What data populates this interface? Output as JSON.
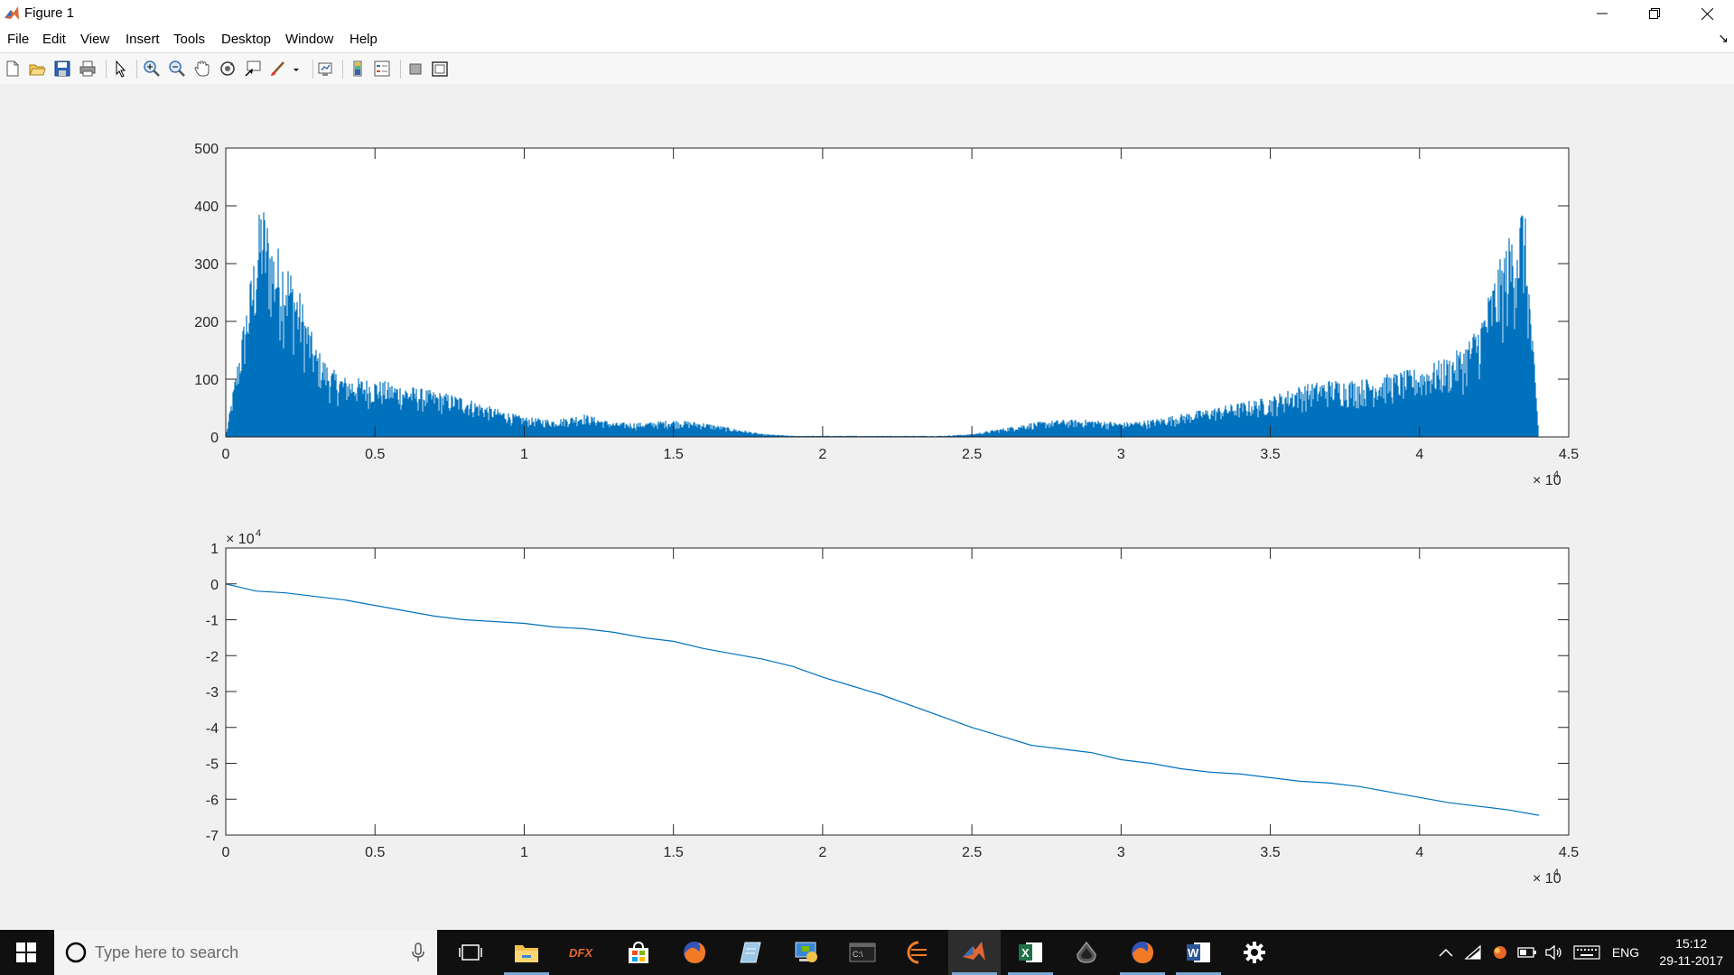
{
  "window": {
    "title": "Figure 1",
    "menu": [
      "File",
      "Edit",
      "View",
      "Insert",
      "Tools",
      "Desktop",
      "Window",
      "Help"
    ]
  },
  "toolbar": {
    "icons": [
      "new-figure-icon",
      "open-file-icon",
      "save-icon",
      "print-icon",
      "edit-plot-arrow-icon",
      "zoom-in-icon",
      "zoom-out-icon",
      "pan-hand-icon",
      "rotate-3d-icon",
      "data-cursor-icon",
      "brush-icon",
      "brush-dropdown-icon",
      "link-plot-icon",
      "insert-colorbar-icon",
      "insert-legend-icon",
      "hide-plot-tools-icon",
      "show-plot-tools-icon"
    ]
  },
  "chart_data": [
    {
      "type": "bar",
      "title": "",
      "xlabel": "",
      "ylabel": "",
      "xlim": [
        0,
        45000
      ],
      "ylim": [
        0,
        500
      ],
      "x_ticks": [
        "0",
        "0.5",
        "1",
        "1.5",
        "2",
        "2.5",
        "3",
        "3.5",
        "4",
        "4.5"
      ],
      "x_exponent": "× 10",
      "x_exponent_power": "4",
      "y_ticks": [
        "0",
        "100",
        "200",
        "300",
        "400",
        "500"
      ],
      "color": "#0072bd",
      "grid": false,
      "envelope": {
        "x": [
          0,
          300,
          600,
          900,
          1200,
          1600,
          2000,
          2500,
          3000,
          3500,
          4000,
          5000,
          6000,
          7000,
          8000,
          9000,
          10000,
          11000,
          12000,
          13000,
          14000,
          15000,
          16000,
          17000,
          18000,
          19000,
          20000,
          22000,
          24000,
          25000,
          26000,
          27000,
          28000,
          29000,
          30000,
          31000,
          32000,
          33000,
          34000,
          35000,
          36000,
          37000,
          38000,
          39000,
          40000,
          41000,
          41500,
          42000,
          42500,
          43000,
          43500,
          44000
        ],
        "y": [
          0,
          100,
          200,
          300,
          420,
          340,
          320,
          250,
          160,
          120,
          105,
          100,
          90,
          80,
          70,
          50,
          35,
          30,
          40,
          25,
          25,
          30,
          25,
          15,
          5,
          2,
          2,
          2,
          2,
          5,
          15,
          25,
          30,
          30,
          25,
          30,
          40,
          50,
          60,
          70,
          90,
          100,
          100,
          110,
          120,
          140,
          160,
          200,
          280,
          350,
          420,
          0
        ]
      }
    },
    {
      "type": "line",
      "title": "",
      "xlabel": "",
      "ylabel": "",
      "xlim": [
        0,
        45000
      ],
      "ylim": [
        -70000,
        10000
      ],
      "x_ticks": [
        "0",
        "0.5",
        "1",
        "1.5",
        "2",
        "2.5",
        "3",
        "3.5",
        "4",
        "4.5"
      ],
      "x_exponent": "× 10",
      "x_exponent_power": "4",
      "y_ticks": [
        "1",
        "0",
        "-1",
        "-2",
        "-3",
        "-4",
        "-5",
        "-6",
        "-7"
      ],
      "y_exponent": "× 10",
      "y_exponent_power": "4",
      "color": "#0072bd",
      "grid": false,
      "x": [
        0,
        500,
        1000,
        2000,
        3000,
        4000,
        5000,
        6000,
        7000,
        8000,
        9000,
        10000,
        11000,
        12000,
        13000,
        14000,
        15000,
        16000,
        17000,
        18000,
        19000,
        20000,
        21000,
        22000,
        23000,
        24000,
        25000,
        26000,
        27000,
        28000,
        29000,
        30000,
        31000,
        32000,
        33000,
        34000,
        35000,
        36000,
        37000,
        38000,
        39000,
        40000,
        41000,
        42000,
        43000,
        44000
      ],
      "y": [
        0,
        -1000,
        -2000,
        -2500,
        -3500,
        -4500,
        -6000,
        -7500,
        -9000,
        -10000,
        -10500,
        -11000,
        -12000,
        -12500,
        -13500,
        -15000,
        -16000,
        -18000,
        -19500,
        -21000,
        -23000,
        -26000,
        -28500,
        -31000,
        -34000,
        -37000,
        -40000,
        -42500,
        -45000,
        -46000,
        -47000,
        -49000,
        -50000,
        -51500,
        -52500,
        -53000,
        -54000,
        -55000,
        -55500,
        -56500,
        -58000,
        -59500,
        -61000,
        -62000,
        -63000,
        -64500
      ]
    }
  ],
  "taskbar": {
    "search_placeholder": "Type here to search",
    "apps": [
      "file-explorer-icon",
      "dfx-app-icon",
      "store-icon",
      "firefox-icon",
      "notepad-app-icon",
      "control-panel-icon",
      "terminal-icon",
      "eclipse-icon",
      "matlab-icon",
      "excel-icon",
      "app-drop-icon",
      "firefox-icon-2",
      "word-icon",
      "settings-icon"
    ],
    "lang": "ENG",
    "time": "15:12",
    "date": "29-11-2017"
  }
}
